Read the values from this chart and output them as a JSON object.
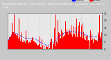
{
  "background_color": "#c8c8c8",
  "plot_bg_color": "#e8e8e8",
  "title_bg_color": "#2a2a2a",
  "actual_color": "#ff0000",
  "median_color": "#0000ff",
  "grid_color": "#aaaaaa",
  "grid_style": "dotted",
  "n_points": 1440,
  "y_max": 25,
  "y_min": 0,
  "title_fontsize": 3.0,
  "tick_fontsize": 2.5,
  "legend_fontsize": 2.5,
  "num_vgrid": 9,
  "legend_actual": "Actual",
  "legend_median": "Median",
  "ytick_values": [
    0,
    5,
    10,
    15,
    20,
    25
  ],
  "xtick_labels": [
    "Fl",
    "Cr",
    "Sp",
    "Fp",
    "Fe",
    "Ps",
    "Fs",
    "Cr",
    "Sa",
    "Ef",
    "Fe",
    "Fe",
    "Sp",
    "Cr",
    "Sa",
    "Ef",
    "Fe",
    "Sp",
    "Cr",
    "Ef",
    "Sa",
    "Sp",
    "Fe",
    "Ef",
    "Sa"
  ]
}
